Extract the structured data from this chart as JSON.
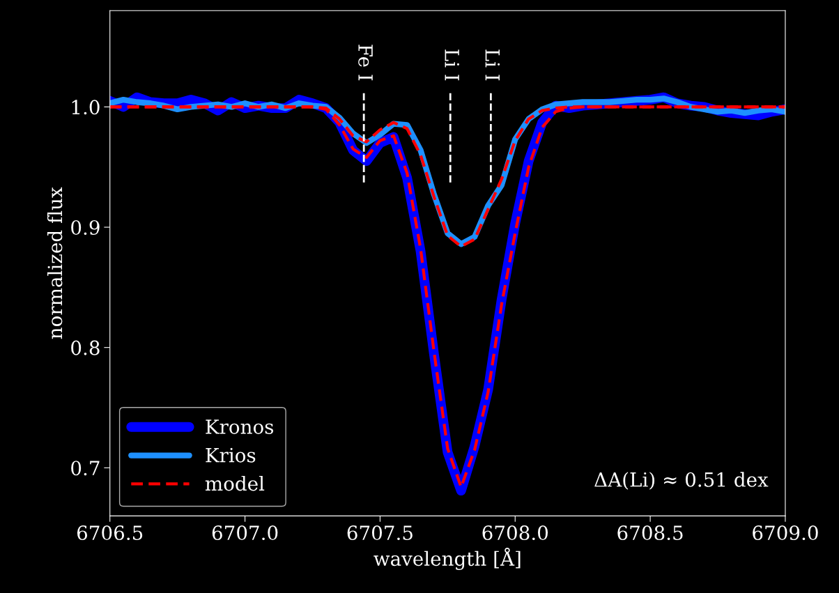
{
  "chart_data": {
    "type": "line",
    "xlabel": "wavelength [Å]",
    "ylabel": "normalized flux",
    "x": [
      6706.5,
      6706.55,
      6706.6,
      6706.65,
      6706.7,
      6706.75,
      6706.8,
      6706.85,
      6706.9,
      6706.95,
      6707.0,
      6707.05,
      6707.1,
      6707.15,
      6707.2,
      6707.25,
      6707.3,
      6707.35,
      6707.4,
      6707.45,
      6707.5,
      6707.55,
      6707.6,
      6707.65,
      6707.7,
      6707.75,
      6707.8,
      6707.85,
      6707.9,
      6707.95,
      6708.0,
      6708.05,
      6708.1,
      6708.15,
      6708.2,
      6708.25,
      6708.3,
      6708.35,
      6708.4,
      6708.45,
      6708.5,
      6708.55,
      6708.6,
      6708.65,
      6708.7,
      6708.75,
      6708.8,
      6708.85,
      6708.9,
      6708.95,
      6709.0
    ],
    "series": [
      {
        "name": "Kronos",
        "color": "#0000ff",
        "line_style": "solid",
        "values": [
          1.005,
          1.0,
          1.008,
          1.004,
          1.003,
          1.003,
          1.006,
          1.003,
          0.997,
          1.004,
          0.999,
          1.001,
          0.999,
          0.999,
          1.006,
          1.003,
          0.999,
          0.987,
          0.964,
          0.955,
          0.97,
          0.975,
          0.941,
          0.88,
          0.794,
          0.713,
          0.681,
          0.718,
          0.765,
          0.84,
          0.903,
          0.955,
          0.987,
          1.001,
          0.999,
          1.001,
          1.002,
          1.003,
          1.004,
          1.005,
          1.006,
          1.008,
          1.003,
          1.001,
          1.0,
          0.997,
          0.995,
          0.994,
          0.993,
          0.996,
          0.998
        ]
      },
      {
        "name": "Krios",
        "color": "#1e90ff",
        "line_style": "solid",
        "values": [
          1.003,
          1.006,
          1.004,
          1.003,
          1.001,
          0.998,
          1.0,
          1.001,
          1.002,
          1.0,
          1.003,
          1.0,
          1.002,
          0.999,
          1.003,
          1.001,
          1.0,
          0.991,
          0.978,
          0.97,
          0.977,
          0.986,
          0.985,
          0.964,
          0.927,
          0.895,
          0.886,
          0.892,
          0.918,
          0.935,
          0.973,
          0.99,
          0.998,
          1.002,
          1.003,
          1.004,
          1.004,
          1.004,
          1.005,
          1.006,
          1.006,
          1.007,
          1.004,
          1.0,
          0.998,
          0.996,
          0.997,
          0.995,
          0.997,
          0.998,
          0.996
        ]
      },
      {
        "name": "model",
        "color": "#ff0000",
        "line_style": "dashed",
        "values": [
          1.0,
          1.0,
          1.0,
          1.0,
          1.0,
          1.0,
          1.0,
          1.0,
          1.0,
          1.0,
          1.0,
          1.0,
          1.0,
          1.0,
          1.0,
          1.0,
          0.998,
          0.985,
          0.965,
          0.958,
          0.972,
          0.976,
          0.945,
          0.882,
          0.796,
          0.716,
          0.684,
          0.715,
          0.763,
          0.836,
          0.895,
          0.95,
          0.983,
          0.996,
          0.999,
          1.0,
          1.0,
          1.0,
          1.0,
          1.0,
          1.0,
          1.0,
          1.0,
          1.0,
          1.0,
          1.0,
          1.0,
          1.0,
          1.0,
          1.0,
          1.0
        ]
      },
      {
        "color": "#ff0000",
        "line_style": "dashed",
        "values": [
          1.0,
          1.0,
          1.0,
          1.0,
          1.0,
          1.0,
          1.0,
          1.0,
          1.0,
          1.0,
          1.0,
          1.0,
          1.0,
          1.0,
          1.0,
          1.0,
          0.999,
          0.99,
          0.976,
          0.971,
          0.981,
          0.987,
          0.982,
          0.96,
          0.925,
          0.893,
          0.884,
          0.89,
          0.915,
          0.94,
          0.972,
          0.99,
          0.997,
          0.999,
          1.0,
          1.0,
          1.0,
          1.0,
          1.0,
          1.0,
          1.0,
          1.0,
          1.0,
          1.0,
          1.0,
          1.0,
          1.0,
          1.0,
          1.0,
          1.0,
          1.0
        ]
      }
    ],
    "xlim": [
      6706.5,
      6709.0
    ],
    "xticks": [
      6706.5,
      {
        "value": 6707,
        "label": "6707.0"
      },
      6707.5,
      {
        "value": 6708,
        "label": "6708.0"
      },
      6708.5,
      {
        "value": 6709,
        "label": "6709.0"
      }
    ],
    "ylim": [
      0.66,
      1.08
    ],
    "yticks": [
      0.7,
      0.8,
      0.9,
      {
        "value": 1,
        "label": "1.0"
      }
    ],
    "ref_lines": [
      {
        "axis": "x",
        "value": 6707.44,
        "label": "Fe I",
        "color": "#ffffff",
        "line_style": "dashed"
      },
      {
        "axis": "x",
        "value": 6707.76,
        "label": "Li I",
        "color": "#ffffff",
        "line_style": "dashed"
      },
      {
        "axis": "x",
        "value": 6707.91,
        "label": "Li I",
        "color": "#ffffff",
        "line_style": "dashed"
      }
    ],
    "annotations": [
      "ΔA(Li) ≈ 0.51 dex"
    ],
    "legend": "bottom left",
    "grid": false,
    "marker": "none"
  }
}
